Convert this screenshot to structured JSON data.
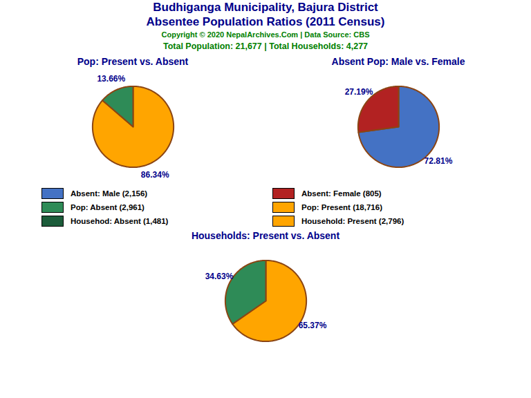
{
  "title": "Budhiganga Municipality, Bajura District",
  "subtitle": "Absentee Population Ratios (2011 Census)",
  "annotations": [
    "Copyright © 2020 NepalArchives.Com | Data Source: CBS",
    "Total Population: 21,677 | Total Households: 4,277"
  ],
  "legend_entries": [
    {
      "label": "Absent: Male (2,156)",
      "color": "#4472C4"
    },
    {
      "label": "Absent: Female (805)",
      "color": "#B22222"
    },
    {
      "label": "Pop: Absent (2,961)",
      "color": "#2E8B57"
    },
    {
      "label": "Pop: Present (18,716)",
      "color": "#FFA500"
    },
    {
      "label": "Househod: Absent (1,481)",
      "color": "#1C5C3A"
    },
    {
      "label": "Household: Present (2,796)",
      "color": "#FFA500"
    }
  ],
  "chart_data": [
    {
      "type": "pie",
      "title": "Pop: Present vs. Absent",
      "values": [
        86.34,
        13.66
      ],
      "value_labels": [
        "86.34%",
        "13.66%"
      ],
      "colors": [
        "#FFA500",
        "#2E8B57"
      ],
      "data_labels": true
    },
    {
      "type": "pie",
      "title": "Absent Pop: Male vs. Female",
      "values": [
        72.81,
        27.19
      ],
      "value_labels": [
        "72.81%",
        "27.19%"
      ],
      "colors": [
        "#4472C4",
        "#B22222"
      ],
      "data_labels": true
    },
    {
      "type": "pie",
      "title": "Households: Present vs. Absent",
      "values": [
        65.37,
        34.63
      ],
      "value_labels": [
        "65.37%",
        "34.63%"
      ],
      "colors": [
        "#FFA500",
        "#2E8B57"
      ],
      "data_labels": true
    }
  ]
}
